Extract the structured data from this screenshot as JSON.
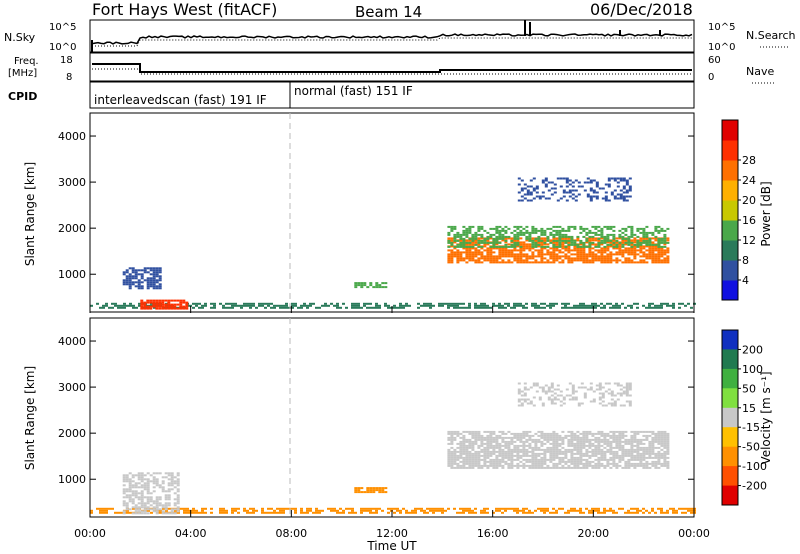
{
  "header": {
    "station": "Fort Hays West (fitACF)",
    "beam": "Beam 14",
    "date": "06/Dec/2018"
  },
  "noise_panel": {
    "left_label": "N.Sky",
    "right_label": "N.Search",
    "left_ticks": [
      "10^5",
      "10^0"
    ],
    "right_ticks": [
      "10^5",
      "10^0"
    ]
  },
  "freq_panel": {
    "left_label_line1": "Freq.",
    "left_label_line2": "[MHz]",
    "right_label": "Nave",
    "left_ticks": [
      "18",
      "8"
    ],
    "right_ticks": [
      "60",
      "0"
    ]
  },
  "cpid_panel": {
    "label": "CPID",
    "segments": [
      {
        "text": "interleavedscan (fast) 191 IF",
        "start_hour": 0
      },
      {
        "text": "normal (fast) 151 IF",
        "start_hour": 8
      }
    ]
  },
  "power_panel": {
    "ylabel": "Slant Range [km]",
    "colorbar_label": "Power [dB]",
    "yticks": [
      "1000",
      "2000",
      "3000",
      "4000"
    ]
  },
  "velocity_panel": {
    "ylabel": "Slant Range [km]",
    "colorbar_label": "Velocity [m s⁻¹]",
    "yticks": [
      "1000",
      "2000",
      "3000",
      "4000"
    ]
  },
  "x_axis": {
    "label": "Time UT",
    "ticks": [
      "00:00",
      "04:00",
      "08:00",
      "12:00",
      "16:00",
      "20:00",
      "00:00"
    ]
  },
  "chart_data": {
    "type": "heatmap",
    "x_range_hours": [
      0,
      24
    ],
    "y_range_km": [
      180,
      4500
    ],
    "power_colorbar": {
      "ticks": [
        "4",
        "8",
        "12",
        "16",
        "20",
        "24",
        "28"
      ],
      "range_db": [
        0,
        32
      ],
      "colors": [
        "#1010e0",
        "#3050a0",
        "#2a7a5a",
        "#4aa84a",
        "#c8c800",
        "#ffb000",
        "#ff7000",
        "#ff3000",
        "#e00000"
      ]
    },
    "velocity_colorbar": {
      "ticks": [
        "200",
        "100",
        "50",
        "15",
        "-15",
        "-50",
        "-100",
        "-200"
      ],
      "colors": [
        "#1030c0",
        "#207a50",
        "#40b040",
        "#80e040",
        "#c8c8c8",
        "#ffc000",
        "#ff9000",
        "#ff5000",
        "#e00000"
      ]
    },
    "power_regions": [
      {
        "name": "near-range",
        "t0": 0,
        "t1": 24,
        "r0": 250,
        "r1": 380,
        "color": "#2a7a5a",
        "density": 0.6
      },
      {
        "name": "early-patch",
        "t0": 1.3,
        "t1": 2.8,
        "r0": 700,
        "r1": 1150,
        "color": "#3050a0",
        "density": 0.7
      },
      {
        "name": "early-strong",
        "t0": 2.0,
        "t1": 3.8,
        "r0": 250,
        "r1": 450,
        "color": "#ff3000",
        "density": 0.8
      },
      {
        "name": "band-11h",
        "t0": 10.5,
        "t1": 11.8,
        "r0": 720,
        "r1": 830,
        "color": "#4aa84a",
        "density": 0.7
      },
      {
        "name": "far-range-main",
        "t0": 14.2,
        "t1": 23.0,
        "r0": 1250,
        "r1": 1800,
        "color": "#ff7000",
        "density": 0.75
      },
      {
        "name": "far-range-upper",
        "t0": 14.2,
        "t1": 23.0,
        "r0": 1600,
        "r1": 2050,
        "color": "#4aa84a",
        "density": 0.55
      },
      {
        "name": "3000km-echo",
        "t0": 17.0,
        "t1": 21.5,
        "r0": 2600,
        "r1": 3100,
        "color": "#3050a0",
        "density": 0.35
      }
    ],
    "velocity_regions": [
      {
        "name": "near-range",
        "t0": 0,
        "t1": 24,
        "r0": 250,
        "r1": 380,
        "color": "#ff9000",
        "density": 0.6
      },
      {
        "name": "early-patch",
        "t0": 1.3,
        "t1": 3.5,
        "r0": 250,
        "r1": 1150,
        "color": "#c8c8c8",
        "density": 0.6
      },
      {
        "name": "band-11h",
        "t0": 10.5,
        "t1": 11.8,
        "r0": 720,
        "r1": 830,
        "color": "#ff9000",
        "density": 0.7
      },
      {
        "name": "far-range-main",
        "t0": 14.2,
        "t1": 23.0,
        "r0": 1250,
        "r1": 2050,
        "color": "#c8c8c8",
        "density": 0.75
      },
      {
        "name": "3000km-echo",
        "t0": 17.0,
        "t1": 21.5,
        "r0": 2600,
        "r1": 3100,
        "color": "#c8c8c8",
        "density": 0.35
      }
    ]
  }
}
